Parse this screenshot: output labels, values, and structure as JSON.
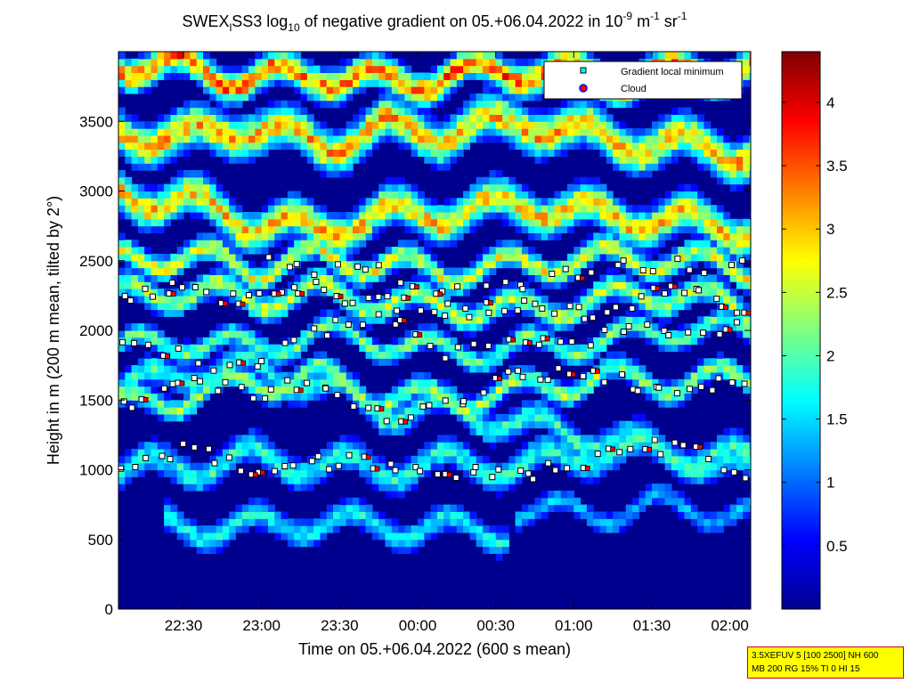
{
  "chart_data": {
    "type": "heatmap",
    "title": {
      "part1": "SWEX",
      "sub1": "l",
      "part2": "SS3 log",
      "sub2": "10",
      "part3": " of negative gradient on 05.+06.04.2022 in 10",
      "sup1": "-9",
      "part4": " m",
      "sup2": "-1",
      "part5": " sr",
      "sup3": "-1"
    },
    "xlabel": "Time on 05.+06.04.2022 (600 s mean)",
    "ylabel": "Height in m (200 m mean, tilted by 2°)",
    "x_ticks": [
      "22:30",
      "23:00",
      "23:30",
      "00:00",
      "00:30",
      "01:00",
      "01:30",
      "02:00"
    ],
    "x_tick_minutes": [
      30,
      60,
      90,
      120,
      150,
      180,
      210,
      240
    ],
    "xlim_minutes": [
      5,
      248
    ],
    "x_origin_time": "22:00",
    "y_ticks": [
      "0",
      "500",
      "1000",
      "1500",
      "2000",
      "2500",
      "3000",
      "3500"
    ],
    "y_tick_values": [
      0,
      500,
      1000,
      1500,
      2000,
      2500,
      3000,
      3500
    ],
    "ylim": [
      0,
      4000
    ],
    "colorbar": {
      "ticks": [
        "0.5",
        "1",
        "1.5",
        "2",
        "2.5",
        "3",
        "3.5",
        "4"
      ],
      "tick_values": [
        0.5,
        1,
        1.5,
        2,
        2.5,
        3,
        3.5,
        4
      ],
      "range": [
        0,
        4.4
      ],
      "colormap": "jet"
    },
    "legend": {
      "position": "top-right",
      "entries": [
        {
          "label": "Gradient local minimum",
          "marker": "square",
          "color": "#00ffff"
        },
        {
          "label": "Cloud",
          "marker": "circle",
          "color": "#ff0000",
          "edge": "#0000ff"
        }
      ]
    },
    "layers": [
      {
        "points": [
          [
            5,
            1560
          ],
          [
            30,
            1680
          ],
          [
            55,
            1700
          ],
          [
            80,
            1600
          ],
          [
            105,
            1400
          ],
          [
            130,
            1420
          ],
          [
            160,
            1300
          ],
          [
            190,
            1200
          ],
          [
            220,
            1100
          ],
          [
            248,
            1050
          ]
        ],
        "thickness": 200,
        "value": 1.8
      },
      {
        "points": [
          [
            5,
            980
          ],
          [
            30,
            1000
          ],
          [
            55,
            1060
          ],
          [
            80,
            1020
          ],
          [
            105,
            980
          ],
          [
            130,
            1030
          ],
          [
            160,
            1000
          ],
          [
            190,
            1120
          ],
          [
            220,
            1080
          ],
          [
            248,
            950
          ]
        ],
        "thickness": 220,
        "value": 1.7
      },
      {
        "points": [
          [
            5,
            1440
          ],
          [
            30,
            1500
          ],
          [
            55,
            1600
          ],
          [
            80,
            1650
          ],
          [
            105,
            1500
          ],
          [
            130,
            1480
          ],
          [
            160,
            1550
          ],
          [
            190,
            1640
          ],
          [
            220,
            1600
          ],
          [
            248,
            1650
          ]
        ],
        "thickness": 160,
        "value": 2.2
      },
      {
        "points": [
          [
            5,
            2230
          ],
          [
            30,
            2260
          ],
          [
            55,
            2200
          ],
          [
            80,
            2250
          ],
          [
            105,
            2180
          ],
          [
            130,
            2150
          ],
          [
            160,
            2120
          ],
          [
            190,
            2200
          ],
          [
            220,
            2250
          ],
          [
            248,
            2100
          ]
        ],
        "thickness": 180,
        "value": 2.3
      },
      {
        "points": [
          [
            5,
            1850
          ],
          [
            30,
            1900
          ],
          [
            55,
            1850
          ],
          [
            80,
            1950
          ],
          [
            105,
            1900
          ],
          [
            130,
            1820
          ],
          [
            160,
            1850
          ],
          [
            190,
            1900
          ],
          [
            220,
            2000
          ],
          [
            248,
            1950
          ]
        ],
        "thickness": 150,
        "value": 2.0
      },
      {
        "points": [
          [
            5,
            2480
          ],
          [
            30,
            2520
          ],
          [
            55,
            2420
          ],
          [
            80,
            2500
          ],
          [
            105,
            2450
          ],
          [
            130,
            2400
          ],
          [
            160,
            2450
          ],
          [
            190,
            2500
          ],
          [
            220,
            2480
          ],
          [
            248,
            2420
          ]
        ],
        "thickness": 170,
        "value": 2.5
      },
      {
        "points": [
          [
            5,
            2950
          ],
          [
            30,
            2900
          ],
          [
            55,
            2750
          ],
          [
            80,
            2700
          ],
          [
            105,
            2800
          ],
          [
            130,
            2820
          ],
          [
            160,
            2880
          ],
          [
            190,
            2800
          ],
          [
            220,
            2760
          ],
          [
            248,
            2700
          ]
        ],
        "thickness": 260,
        "value": 2.8
      },
      {
        "points": [
          [
            5,
            3400
          ],
          [
            30,
            3350
          ],
          [
            55,
            3450
          ],
          [
            80,
            3300
          ],
          [
            105,
            3420
          ],
          [
            130,
            3400
          ],
          [
            160,
            3480
          ],
          [
            190,
            3350
          ],
          [
            220,
            3300
          ],
          [
            248,
            3250
          ]
        ],
        "thickness": 280,
        "value": 2.9
      },
      {
        "points": [
          [
            5,
            3900
          ],
          [
            30,
            3850
          ],
          [
            55,
            3780
          ],
          [
            80,
            3820
          ],
          [
            105,
            3750
          ],
          [
            130,
            3800
          ],
          [
            160,
            3850
          ],
          [
            190,
            3780
          ],
          [
            220,
            3820
          ],
          [
            248,
            3860
          ]
        ],
        "thickness": 220,
        "value": 3.2
      },
      {
        "points": [
          [
            25,
            580
          ],
          [
            50,
            560
          ],
          [
            75,
            600
          ],
          [
            100,
            580
          ],
          [
            125,
            560
          ],
          [
            150,
            540
          ]
        ],
        "thickness": 200,
        "value": 1.6
      },
      {
        "points": [
          [
            160,
            700
          ],
          [
            185,
            650
          ],
          [
            210,
            720
          ],
          [
            248,
            650
          ]
        ],
        "thickness": 160,
        "value": 1.3
      }
    ],
    "minima_tracks": [
      {
        "points": [
          [
            5,
            2250
          ],
          [
            30,
            2300
          ],
          [
            55,
            2200
          ],
          [
            80,
            2300
          ],
          [
            105,
            2200
          ],
          [
            130,
            2140
          ],
          [
            160,
            2180
          ],
          [
            190,
            2130
          ],
          [
            220,
            2300
          ],
          [
            248,
            2080
          ]
        ],
        "count": 60
      },
      {
        "points": [
          [
            5,
            1450
          ],
          [
            30,
            1680
          ],
          [
            55,
            1520
          ],
          [
            80,
            1640
          ],
          [
            105,
            1380
          ],
          [
            130,
            1450
          ],
          [
            160,
            1700
          ],
          [
            190,
            1650
          ],
          [
            220,
            1600
          ],
          [
            248,
            1660
          ]
        ],
        "count": 55
      },
      {
        "points": [
          [
            5,
            950
          ],
          [
            30,
            1150
          ],
          [
            55,
            1020
          ],
          [
            80,
            1040
          ],
          [
            105,
            1060
          ],
          [
            130,
            1000
          ],
          [
            160,
            950
          ],
          [
            190,
            1100
          ],
          [
            220,
            1180
          ],
          [
            248,
            940
          ]
        ],
        "count": 55
      },
      {
        "points": [
          [
            5,
            1950
          ],
          [
            30,
            1800
          ],
          [
            55,
            1700
          ],
          [
            80,
            1980
          ],
          [
            105,
            2100
          ],
          [
            130,
            1840
          ],
          [
            160,
            1900
          ],
          [
            190,
            1950
          ],
          [
            220,
            2010
          ],
          [
            248,
            2030
          ]
        ],
        "count": 45
      },
      {
        "points": [
          [
            60,
            2500
          ],
          [
            80,
            2420
          ],
          [
            100,
            2480
          ],
          [
            130,
            2300
          ],
          [
            160,
            2320
          ],
          [
            190,
            2480
          ],
          [
            220,
            2460
          ],
          [
            248,
            2480
          ]
        ],
        "count": 30
      }
    ],
    "cloud_markers_count": 40,
    "info_box": {
      "line1": "3.5XEFUV 5 [100 2500] NH 600",
      "line2": "MB 200 RG 15% TI 0 HI 15"
    }
  }
}
